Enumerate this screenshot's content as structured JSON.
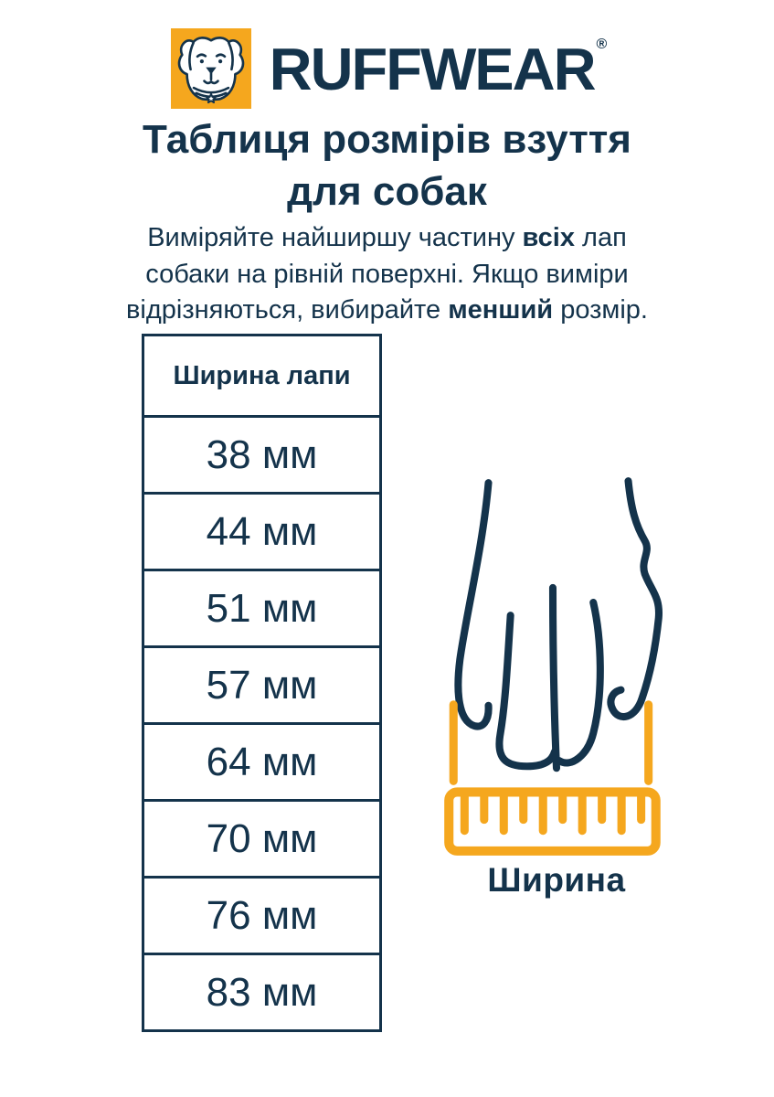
{
  "colors": {
    "navy": "#14334B",
    "orange": "#F5A71E",
    "background": "#FFFFFF"
  },
  "logo": {
    "brand": "RUFFWEAR",
    "registered": "®"
  },
  "title": {
    "line1": "Таблиця розмірів взуття",
    "line2": "для собак"
  },
  "instructions": {
    "lines": [
      [
        {
          "t": "Виміряйте найширшу частину ",
          "b": false
        },
        {
          "t": "всіх",
          "b": true
        },
        {
          "t": " лап",
          "b": false
        }
      ],
      [
        {
          "t": "собаки на рівній поверхні. Якщо виміри",
          "b": false
        }
      ],
      [
        {
          "t": "відрізняються, вибирайте ",
          "b": false
        },
        {
          "t": "менший",
          "b": true
        },
        {
          "t": " розмір.",
          "b": false
        }
      ]
    ]
  },
  "size_table": {
    "header": "Ширина лапи",
    "rows": [
      "38 мм",
      "44 мм",
      "51 мм",
      "57 мм",
      "64 мм",
      "70 мм",
      "76 мм",
      "83 мм"
    ]
  },
  "figure": {
    "caption": "Ширина",
    "ruler_ticks": 10
  }
}
